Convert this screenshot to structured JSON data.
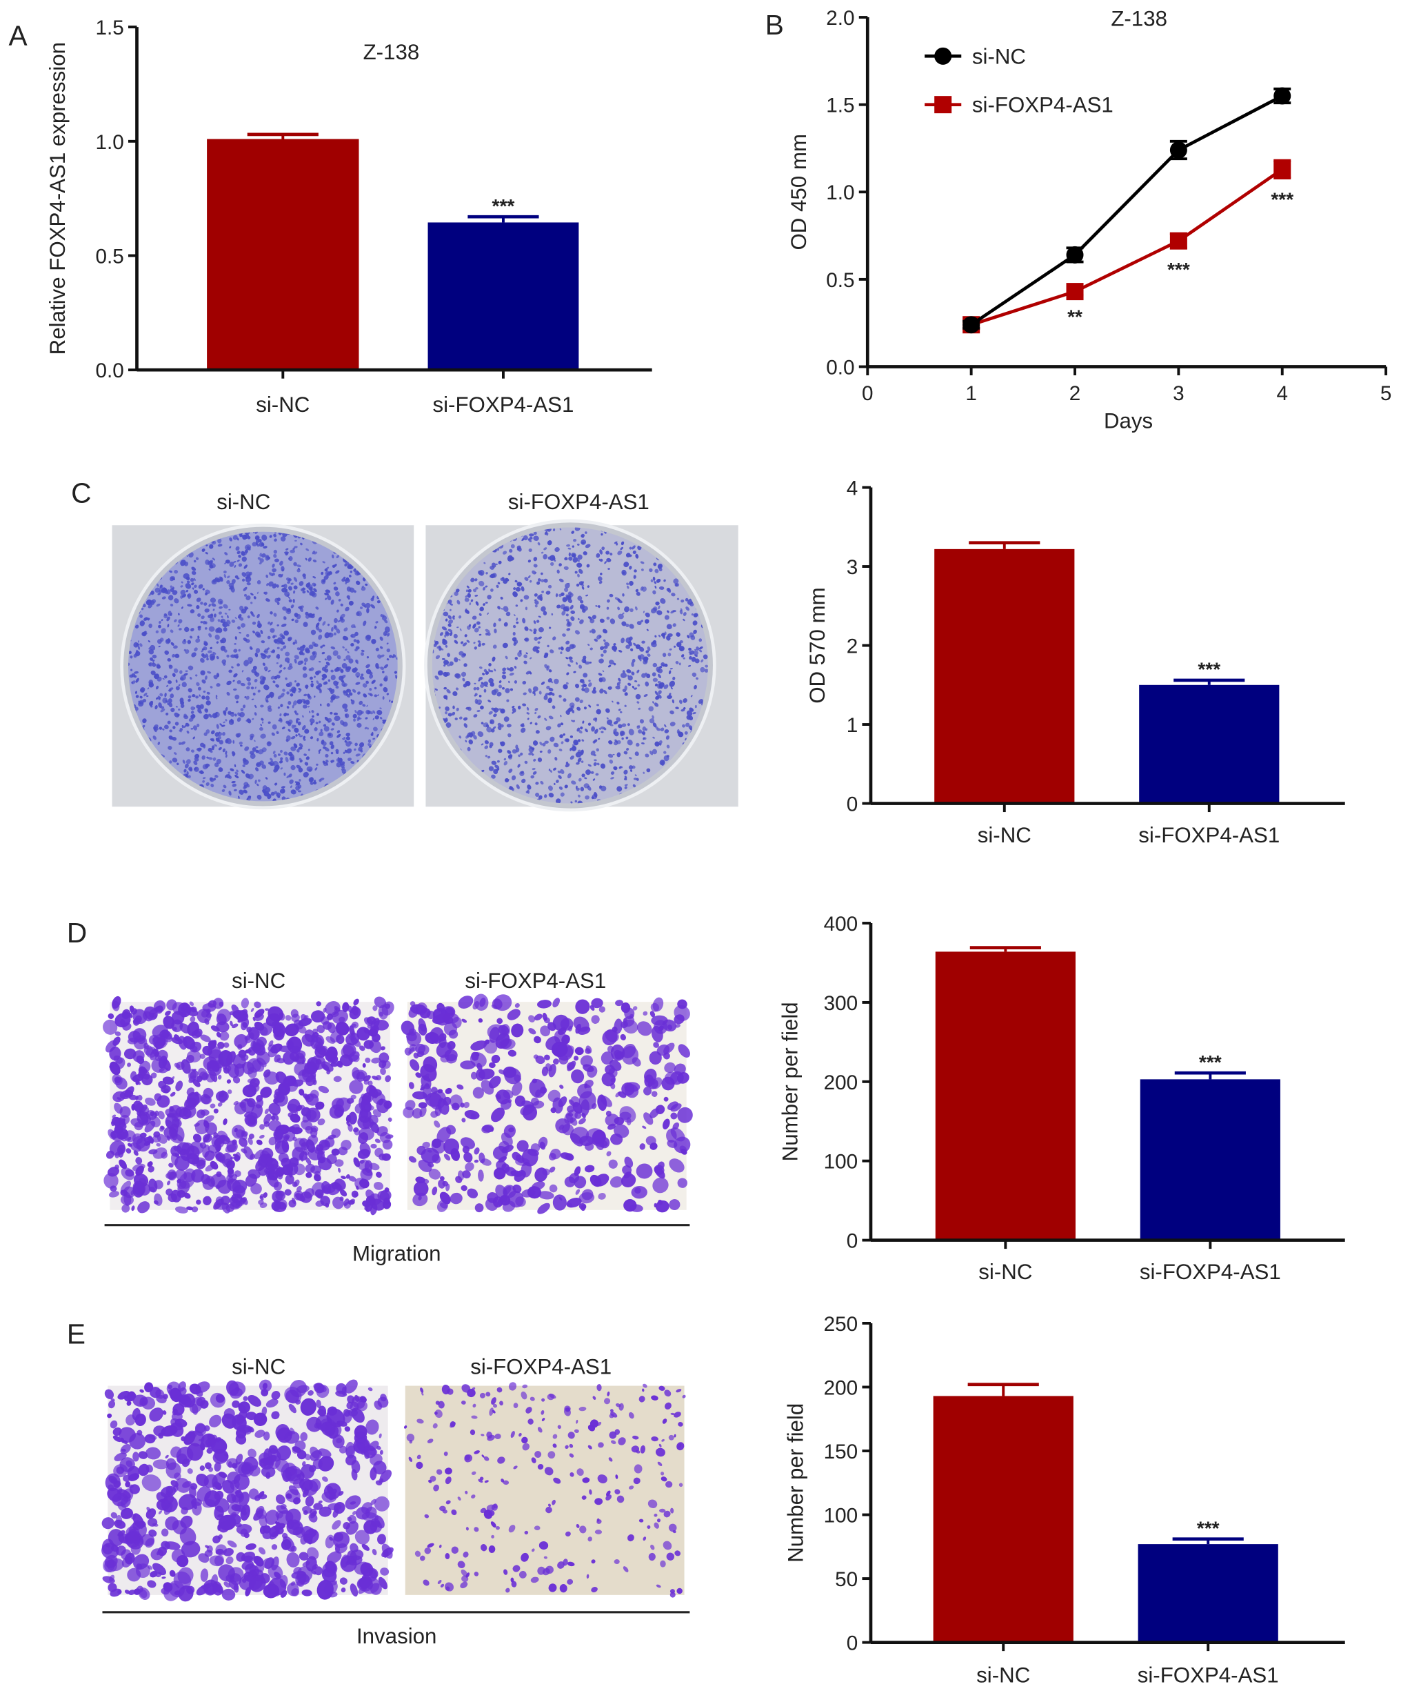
{
  "panels": {
    "A": "A",
    "B": "B",
    "C": "C",
    "D": "D",
    "E": "E"
  },
  "photos": {
    "C": {
      "labels": [
        "si-NC",
        "si-FOXP4-AS1"
      ]
    },
    "D": {
      "labels": [
        "si-NC",
        "si-FOXP4-AS1"
      ],
      "caption": "Migration"
    },
    "E": {
      "labels": [
        "si-NC",
        "si-FOXP4-AS1"
      ],
      "caption": "Invasion"
    }
  },
  "colors": {
    "siNC_bar": "#a00000",
    "siFOXP4_bar": "#00007f",
    "line_nc": "#000000",
    "line_foxp4": "#b00000",
    "stain": "#6a2fd6",
    "dish_stain": "#4b4fc8"
  },
  "chart_data": [
    {
      "type": "bar",
      "panel": "A",
      "title": "Z-138",
      "xlabel": "",
      "ylabel": "Relative FOXP4-AS1 expression",
      "categories": [
        "si-NC",
        "si-FOXP4-AS1"
      ],
      "values": [
        1.01,
        0.645
      ],
      "errors": [
        0.02,
        0.025
      ],
      "significance": [
        "",
        "***"
      ],
      "ylim": [
        0,
        1.5
      ],
      "yticks": [
        "0.0",
        "0.5",
        "1.0",
        "1.5"
      ],
      "ytick_values": [
        0,
        0.5,
        1.0,
        1.5
      ]
    },
    {
      "type": "line",
      "panel": "B",
      "title": "Z-138",
      "xlabel": "Days",
      "ylabel": "OD 450 mm",
      "x": [
        1,
        2,
        3,
        4
      ],
      "series": [
        {
          "name": "si-NC",
          "values": [
            0.24,
            0.64,
            1.24,
            1.55
          ],
          "errors": [
            0.02,
            0.04,
            0.05,
            0.04
          ],
          "marker": "circle"
        },
        {
          "name": "si-FOXP4-AS1",
          "values": [
            0.24,
            0.43,
            0.72,
            1.13
          ],
          "errors": [
            0.02,
            0.02,
            0.04,
            0.05
          ],
          "marker": "square",
          "significance": [
            "",
            "**",
            "***",
            "***"
          ]
        }
      ],
      "xlim": [
        0,
        5
      ],
      "xticks": [
        "0",
        "1",
        "2",
        "3",
        "4",
        "5"
      ],
      "ylim": [
        0,
        2.0
      ],
      "yticks": [
        "0.0",
        "0.5",
        "1.0",
        "1.5",
        "2.0"
      ],
      "ytick_values": [
        0,
        0.5,
        1.0,
        1.5,
        2.0
      ],
      "legend": "top-left"
    },
    {
      "type": "bar",
      "panel": "C",
      "title": "",
      "xlabel": "",
      "ylabel": "OD 570 mm",
      "categories": [
        "si-NC",
        "si-FOXP4-AS1"
      ],
      "values": [
        3.22,
        1.5
      ],
      "errors": [
        0.08,
        0.06
      ],
      "significance": [
        "",
        "***"
      ],
      "ylim": [
        0,
        4
      ],
      "yticks": [
        "0",
        "1",
        "2",
        "3",
        "4"
      ],
      "ytick_values": [
        0,
        1,
        2,
        3,
        4
      ]
    },
    {
      "type": "bar",
      "panel": "D",
      "title": "",
      "xlabel": "",
      "ylabel": "Number per field",
      "categories": [
        "si-NC",
        "si-FOXP4-AS1"
      ],
      "values": [
        364,
        203
      ],
      "errors": [
        5,
        8
      ],
      "significance": [
        "",
        "***"
      ],
      "ylim": [
        0,
        400
      ],
      "yticks": [
        "0",
        "100",
        "200",
        "300",
        "400"
      ],
      "ytick_values": [
        0,
        100,
        200,
        300,
        400
      ]
    },
    {
      "type": "bar",
      "panel": "E",
      "title": "",
      "xlabel": "",
      "ylabel": "Number per field",
      "categories": [
        "si-NC",
        "si-FOXP4-AS1"
      ],
      "values": [
        193,
        77
      ],
      "errors": [
        9,
        4
      ],
      "significance": [
        "",
        "***"
      ],
      "ylim": [
        0,
        250
      ],
      "yticks": [
        "0",
        "50",
        "100",
        "150",
        "200",
        "250"
      ],
      "ytick_values": [
        0,
        50,
        100,
        150,
        200,
        250
      ]
    }
  ]
}
